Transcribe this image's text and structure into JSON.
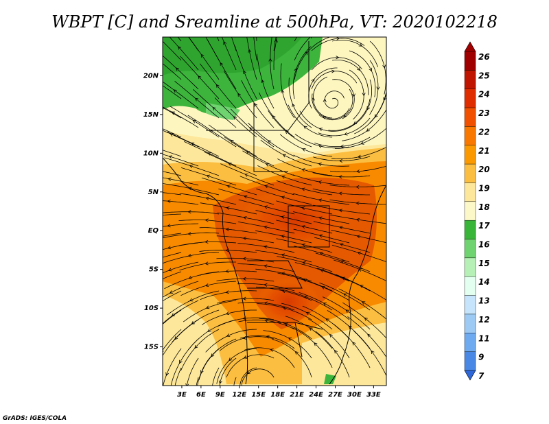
{
  "title": "WBPT [C] and Sreamline at 500hPa, VT: 2020102218",
  "credit": "GrADS: IGES/COLA",
  "map": {
    "lon_range": [
      0,
      35
    ],
    "lat_range": [
      -20,
      25
    ],
    "lon_ticks": [
      "3E",
      "6E",
      "9E",
      "12E",
      "15E",
      "18E",
      "21E",
      "24E",
      "27E",
      "30E",
      "33E"
    ],
    "lat_ticks": [
      "20N",
      "15N",
      "10N",
      "5N",
      "EQ",
      "5S",
      "10S",
      "15S"
    ],
    "field": "wet-bulb potential temperature",
    "field_units": "C",
    "overlay": "streamlines"
  },
  "colorbar": {
    "levels": [
      "26",
      "25",
      "24",
      "23",
      "22",
      "21",
      "20",
      "19",
      "18",
      "17",
      "16",
      "15",
      "14",
      "13",
      "12",
      "11",
      "9",
      "7"
    ],
    "colors": [
      "#a00000",
      "#c01500",
      "#e02d00",
      "#f05000",
      "#f87800",
      "#fa9a00",
      "#fcbe40",
      "#fde79a",
      "#fdf8c8",
      "#39b539",
      "#6fd36f",
      "#b6f0b6",
      "#e2fff0",
      "#c6e4fb",
      "#9ccaf5",
      "#6eaaf0",
      "#4a88e6",
      "#2e67d8"
    ],
    "colors_note_top": "#a00000",
    "bottom_arrow_color": "#2e67d8"
  }
}
